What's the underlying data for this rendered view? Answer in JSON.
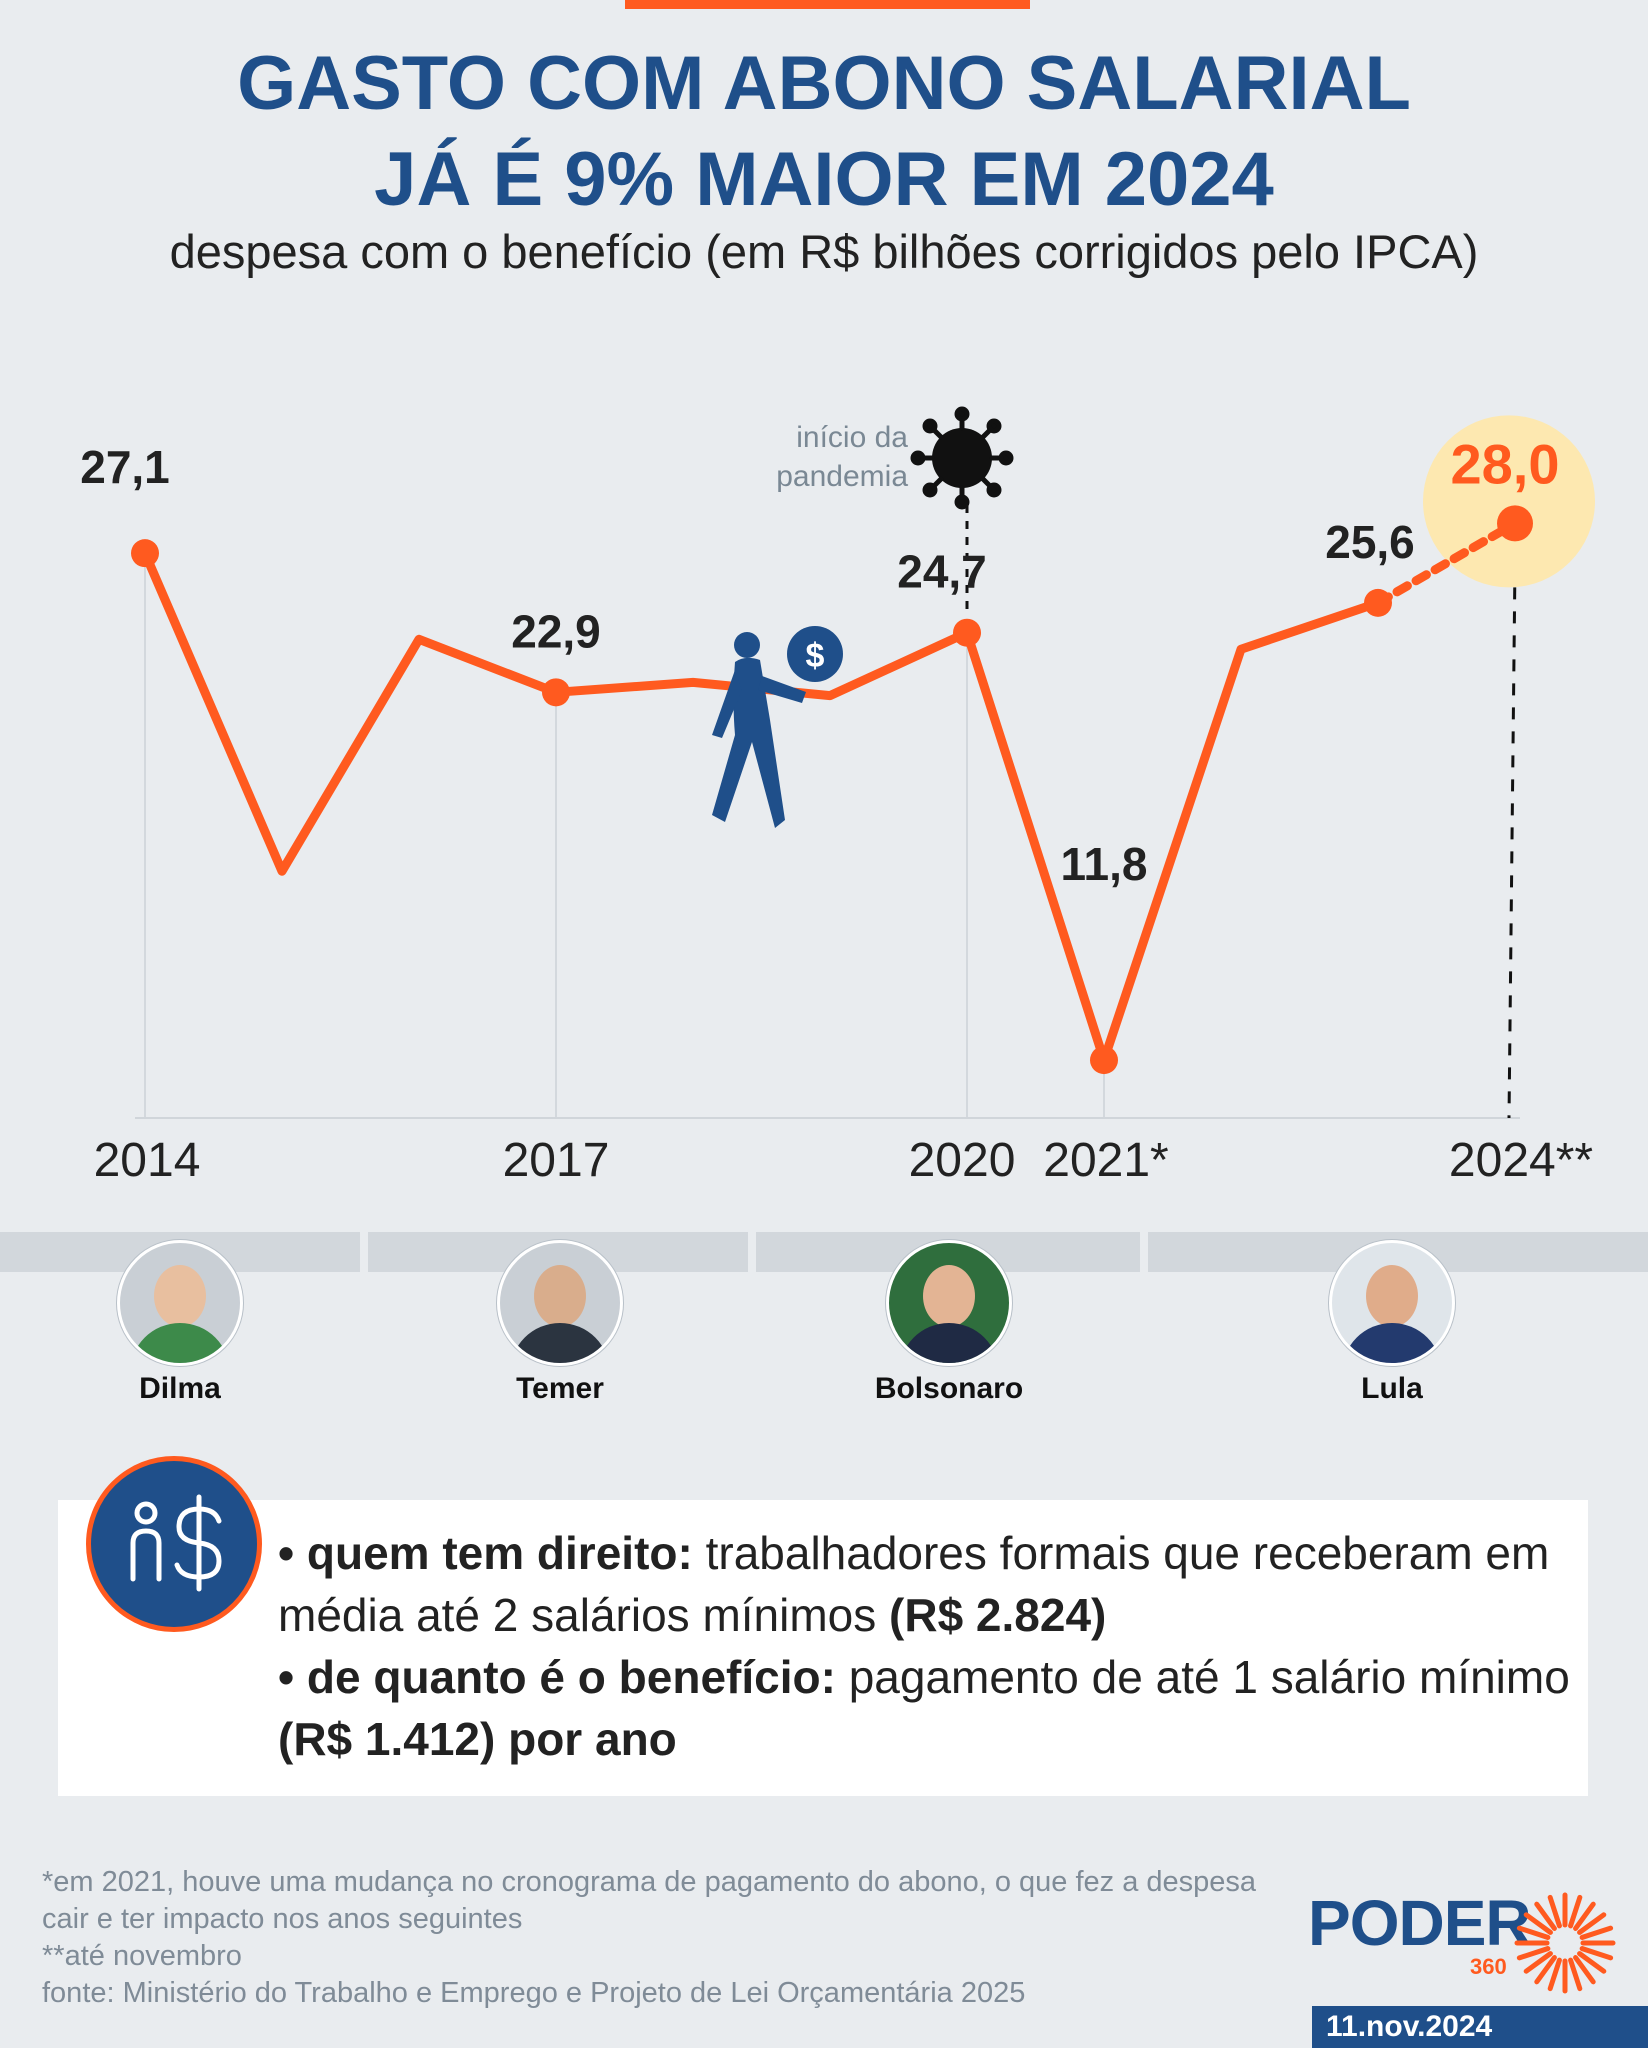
{
  "header": {
    "title_line1": "GASTO COM ABONO SALARIAL",
    "title_line2": "JÁ É 9% MAIOR EM 2024",
    "subtitle": "despesa com o benefício (em R$ bilhões corrigidos pelo IPCA)"
  },
  "colors": {
    "accent": "#ff5a1f",
    "brand_blue": "#1f4f8a",
    "highlight_circle": "#fde8b0"
  },
  "chart_data": {
    "type": "line",
    "title": "GASTO COM ABONO SALARIAL JÁ É 9% MAIOR EM 2024",
    "ylabel": "",
    "x": [
      2014,
      2015,
      2016,
      2017,
      2018,
      2019,
      2020,
      2021,
      2022,
      2023,
      2024
    ],
    "values": [
      27.1,
      17.5,
      24.5,
      22.9,
      23.2,
      22.8,
      24.7,
      11.8,
      24.2,
      25.6,
      28.0
    ],
    "ylim": [
      10,
      30
    ],
    "labeled_points": [
      {
        "x": 2014,
        "label": "27,1"
      },
      {
        "x": 2017,
        "label": "22,9"
      },
      {
        "x": 2020,
        "label": "24,7"
      },
      {
        "x": 2021,
        "label": "11,8"
      },
      {
        "x": 2023,
        "label": "25,6"
      },
      {
        "x": 2024,
        "label": "28,0"
      }
    ],
    "x_tick_labels": [
      {
        "x": 2014,
        "label": "2014"
      },
      {
        "x": 2017,
        "label": "2017"
      },
      {
        "x": 2020,
        "label": "2020"
      },
      {
        "x": 2021,
        "label": "2021*"
      },
      {
        "x": 2024,
        "label": "2024**"
      }
    ],
    "annotations": [
      {
        "x": 2020,
        "text_line1": "início da",
        "text_line2": "pandemia",
        "icon": "virus-icon"
      }
    ],
    "projection_from": 2023,
    "grid": false
  },
  "presidents": [
    {
      "name": "Dilma"
    },
    {
      "name": "Temer"
    },
    {
      "name": "Bolsonaro"
    },
    {
      "name": "Lula"
    }
  ],
  "info": {
    "icon": "person-money-icon",
    "item1_bold": "• quem tem direito:",
    "item1_text": " trabalhadores formais que receberam em média até 2 salários mínimos ",
    "item1_value": "(R$ 2.824)",
    "item2_bold": "• de quanto é o benefício:",
    "item2_text": " pagamento de até 1 salário mínimo ",
    "item2_value": "(R$ 1.412) por ano"
  },
  "footnotes": {
    "note1": "*em 2021, houve uma mudança no cronograma de pagamento do abono, o que fez a despesa cair e ter impacto nos anos seguintes",
    "note2": "**até novembro",
    "source": "fonte: Ministério do Trabalho e Emprego e Projeto de Lei Orçamentária 2025"
  },
  "branding": {
    "logo": "PODER",
    "logo_sub": "360",
    "date": "11.nov.2024"
  }
}
